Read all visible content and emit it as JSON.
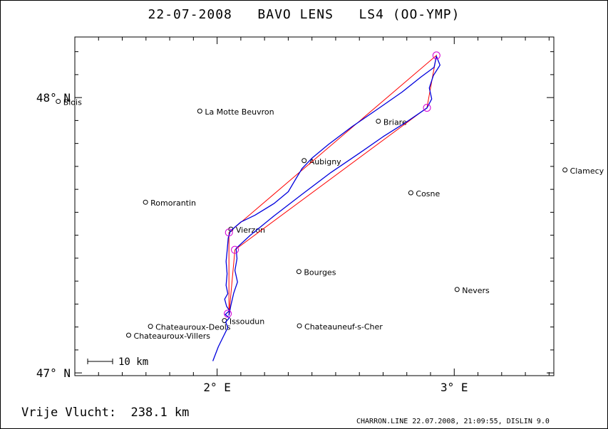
{
  "header": {
    "title": "22-07-2008   BAVO LENS   LS4 (OO-YMP)"
  },
  "summary": {
    "free_flight": "Vrije Vlucht:  238.1 km"
  },
  "footer": {
    "text": "CHARRON.LINE 22.07.2008, 21:09:55, DISLIN 9.0"
  },
  "scale_bar": {
    "label": "10 km",
    "km": 10
  },
  "chart_data": {
    "type": "scatter",
    "title": "22-07-2008   BAVO LENS   LS4 (OO-YMP)",
    "xlim": [
      1.4,
      3.42
    ],
    "ylim": [
      46.99,
      48.22
    ],
    "x_ticks": [
      {
        "value": 2.0,
        "label": "2° E"
      },
      {
        "value": 3.0,
        "label": "3° E"
      }
    ],
    "y_ticks": [
      {
        "value": 48.0,
        "label": "48° N"
      },
      {
        "value": 47.0,
        "label": "47° N"
      }
    ],
    "colors": {
      "track": "#0000dd",
      "task": "#ff0000",
      "turnpoint": "#d400d4",
      "places": "#000000"
    },
    "places": [
      {
        "name": "Blois",
        "lon": 1.33,
        "lat": 47.986
      },
      {
        "name": "La Motte Beuvron",
        "lon": 1.927,
        "lat": 47.951
      },
      {
        "name": "Briare",
        "lon": 2.68,
        "lat": 47.914
      },
      {
        "name": "Aubigny",
        "lon": 2.367,
        "lat": 47.771
      },
      {
        "name": "Clamecy",
        "lon": 3.467,
        "lat": 47.737
      },
      {
        "name": "Cosne",
        "lon": 2.817,
        "lat": 47.654
      },
      {
        "name": "Romorantin",
        "lon": 1.698,
        "lat": 47.62
      },
      {
        "name": "Vierzon",
        "lon": 2.058,
        "lat": 47.522
      },
      {
        "name": "Bourges",
        "lon": 2.345,
        "lat": 47.368
      },
      {
        "name": "Nevers",
        "lon": 3.012,
        "lat": 47.303
      },
      {
        "name": "Issoudun",
        "lon": 2.031,
        "lat": 47.19
      },
      {
        "name": "Chateauroux-Deols",
        "lon": 1.719,
        "lat": 47.169
      },
      {
        "name": "Chateauneuf-s-Cher",
        "lon": 2.347,
        "lat": 47.171
      },
      {
        "name": "Chateauroux-Villers",
        "lon": 1.627,
        "lat": 47.137
      }
    ],
    "task_polygon": [
      {
        "lon": 2.05,
        "lat": 47.21
      },
      {
        "lon": 2.05,
        "lat": 47.51
      },
      {
        "lon": 2.925,
        "lat": 48.153
      },
      {
        "lon": 2.885,
        "lat": 47.963
      },
      {
        "lon": 2.075,
        "lat": 47.447
      },
      {
        "lon": 2.05,
        "lat": 47.21
      }
    ],
    "turnpoints": [
      {
        "lon": 2.925,
        "lat": 48.153
      },
      {
        "lon": 2.885,
        "lat": 47.963
      },
      {
        "lon": 2.05,
        "lat": 47.51
      },
      {
        "lon": 2.075,
        "lat": 47.447
      },
      {
        "lon": 2.045,
        "lat": 47.215
      }
    ],
    "track": [
      {
        "lon": 1.982,
        "lat": 47.043
      },
      {
        "lon": 2.005,
        "lat": 47.095
      },
      {
        "lon": 2.028,
        "lat": 47.135
      },
      {
        "lon": 2.045,
        "lat": 47.165
      },
      {
        "lon": 2.036,
        "lat": 47.185
      },
      {
        "lon": 2.052,
        "lat": 47.2
      },
      {
        "lon": 2.034,
        "lat": 47.212
      },
      {
        "lon": 2.052,
        "lat": 47.226
      },
      {
        "lon": 2.04,
        "lat": 47.242
      },
      {
        "lon": 2.032,
        "lat": 47.268
      },
      {
        "lon": 2.045,
        "lat": 47.288
      },
      {
        "lon": 2.038,
        "lat": 47.318
      },
      {
        "lon": 2.042,
        "lat": 47.36
      },
      {
        "lon": 2.038,
        "lat": 47.405
      },
      {
        "lon": 2.043,
        "lat": 47.45
      },
      {
        "lon": 2.047,
        "lat": 47.49
      },
      {
        "lon": 2.056,
        "lat": 47.515
      },
      {
        "lon": 2.1,
        "lat": 47.548
      },
      {
        "lon": 2.16,
        "lat": 47.573
      },
      {
        "lon": 2.24,
        "lat": 47.615
      },
      {
        "lon": 2.3,
        "lat": 47.658
      },
      {
        "lon": 2.33,
        "lat": 47.702
      },
      {
        "lon": 2.358,
        "lat": 47.742
      },
      {
        "lon": 2.4,
        "lat": 47.78
      },
      {
        "lon": 2.47,
        "lat": 47.83
      },
      {
        "lon": 2.57,
        "lat": 47.895
      },
      {
        "lon": 2.68,
        "lat": 47.96
      },
      {
        "lon": 2.78,
        "lat": 48.02
      },
      {
        "lon": 2.86,
        "lat": 48.075
      },
      {
        "lon": 2.915,
        "lat": 48.11
      },
      {
        "lon": 2.925,
        "lat": 48.15
      },
      {
        "lon": 2.94,
        "lat": 48.118
      },
      {
        "lon": 2.912,
        "lat": 48.08
      },
      {
        "lon": 2.895,
        "lat": 48.035
      },
      {
        "lon": 2.905,
        "lat": 47.995
      },
      {
        "lon": 2.885,
        "lat": 47.962
      },
      {
        "lon": 2.8,
        "lat": 47.912
      },
      {
        "lon": 2.7,
        "lat": 47.858
      },
      {
        "lon": 2.6,
        "lat": 47.798
      },
      {
        "lon": 2.48,
        "lat": 47.728
      },
      {
        "lon": 2.36,
        "lat": 47.65
      },
      {
        "lon": 2.24,
        "lat": 47.57
      },
      {
        "lon": 2.14,
        "lat": 47.5
      },
      {
        "lon": 2.08,
        "lat": 47.452
      },
      {
        "lon": 2.084,
        "lat": 47.415
      },
      {
        "lon": 2.075,
        "lat": 47.372
      },
      {
        "lon": 2.086,
        "lat": 47.33
      },
      {
        "lon": 2.07,
        "lat": 47.29
      },
      {
        "lon": 2.058,
        "lat": 47.245
      },
      {
        "lon": 2.05,
        "lat": 47.208
      }
    ]
  }
}
